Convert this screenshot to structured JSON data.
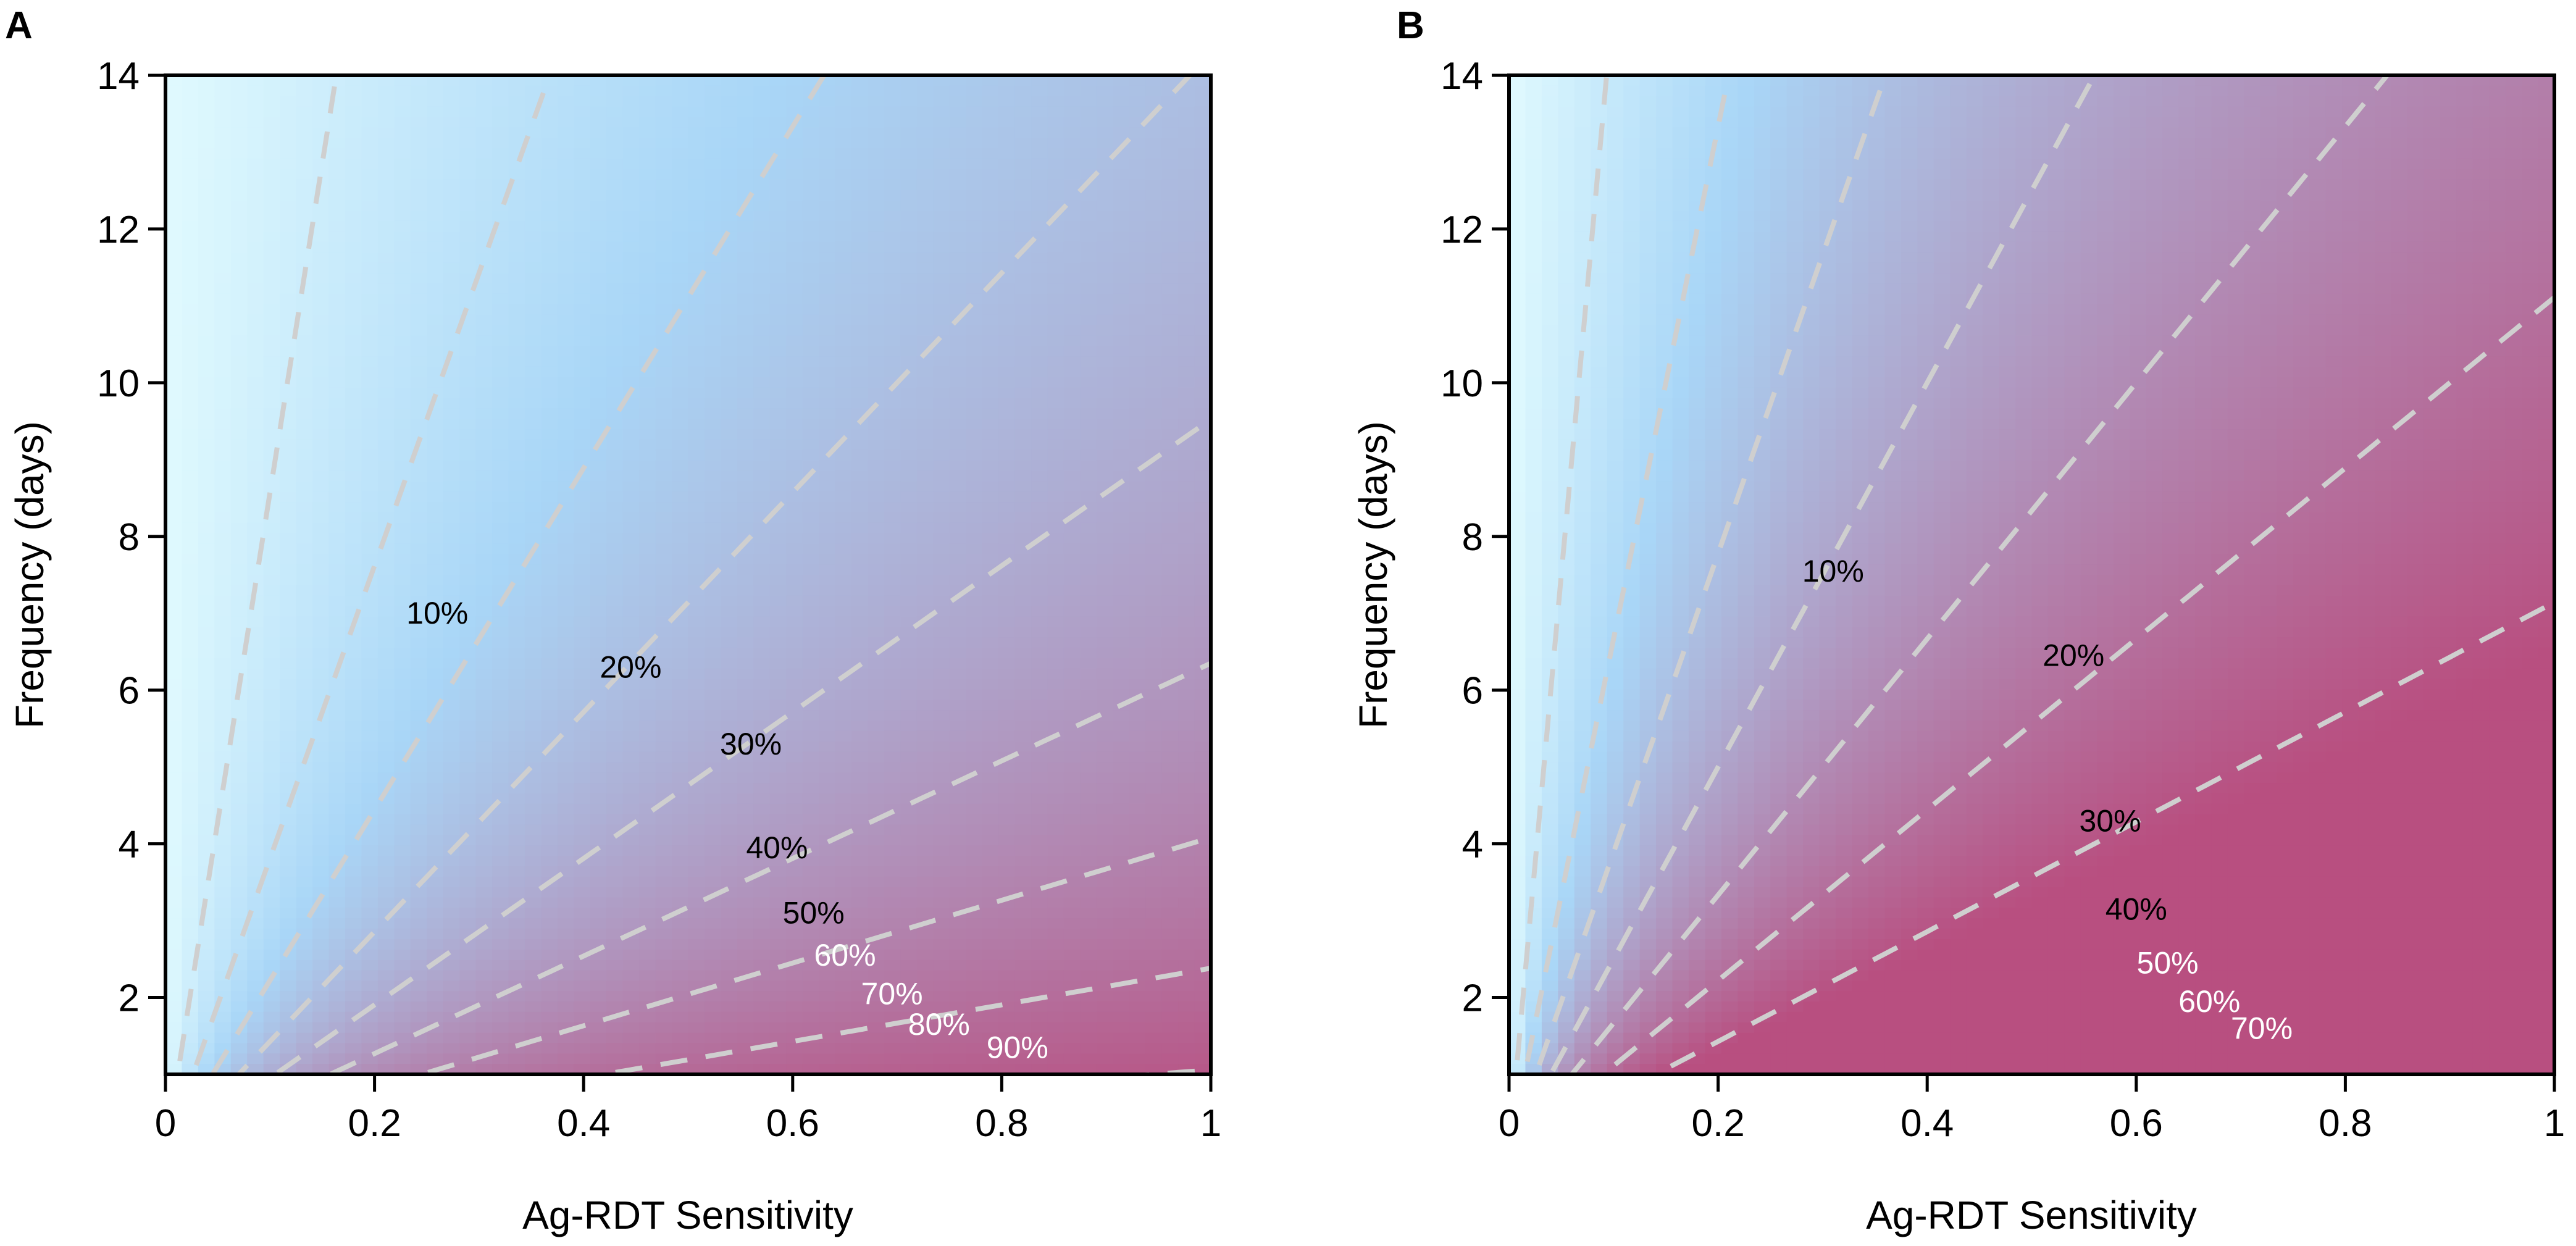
{
  "chart_data": [
    {
      "panel_label": "A",
      "type": "heatmap",
      "xlabel": "Ag-RDT Sensitivity",
      "ylabel": "Frequency (days)",
      "xlim": [
        0,
        1
      ],
      "ylim": [
        1,
        14
      ],
      "xticks": [
        "0",
        "0.2",
        "0.4",
        "0.6",
        "0.8",
        "1"
      ],
      "yticks": [
        "2",
        "4",
        "6",
        "8",
        "10",
        "12",
        "14"
      ],
      "xtick_values": [
        0,
        0.2,
        0.4,
        0.6,
        0.8,
        1
      ],
      "ytick_values": [
        2,
        4,
        6,
        8,
        10,
        12,
        14
      ],
      "contour_k": 0.105,
      "fill_max": 0.95,
      "colors": {
        "low": "#e0fafe",
        "mid": "#a9d6f7",
        "high": "#b84f80",
        "line": "#cfcfcf"
      },
      "contours": [
        {
          "label": "10%",
          "level": 0.1,
          "label_x": 0.26,
          "label_y": 7.0,
          "label_color": "#000000"
        },
        {
          "label": "20%",
          "level": 0.2,
          "label_x": 0.445,
          "label_y": 6.3,
          "label_color": "#000000"
        },
        {
          "label": "30%",
          "level": 0.3,
          "label_x": 0.56,
          "label_y": 5.3,
          "label_color": "#000000"
        },
        {
          "label": "40%",
          "level": 0.4,
          "label_x": 0.585,
          "label_y": 3.95,
          "label_color": "#000000"
        },
        {
          "label": "50%",
          "level": 0.5,
          "label_x": 0.62,
          "label_y": 3.1,
          "label_color": "#000000"
        },
        {
          "label": "60%",
          "level": 0.6,
          "label_x": 0.65,
          "label_y": 2.55,
          "label_color": "#ffffff"
        },
        {
          "label": "70%",
          "level": 0.7,
          "label_x": 0.695,
          "label_y": 2.05,
          "label_color": "#ffffff"
        },
        {
          "label": "80%",
          "level": 0.8,
          "label_x": 0.74,
          "label_y": 1.65,
          "label_color": "#ffffff"
        },
        {
          "label": "90%",
          "level": 0.9,
          "label_x": 0.815,
          "label_y": 1.35,
          "label_color": "#ffffff"
        }
      ]
    },
    {
      "panel_label": "B",
      "type": "heatmap",
      "xlabel": "Ag-RDT Sensitivity",
      "ylabel": "Frequency (days)",
      "xlim": [
        0,
        1
      ],
      "ylim": [
        1,
        14
      ],
      "xticks": [
        "0",
        "0.2",
        "0.4",
        "0.6",
        "0.8",
        "1"
      ],
      "yticks": [
        "2",
        "4",
        "6",
        "8",
        "10",
        "12",
        "14"
      ],
      "xtick_values": [
        0,
        0.2,
        0.4,
        0.6,
        0.8,
        1
      ],
      "ytick_values": [
        2,
        4,
        6,
        8,
        10,
        12,
        14
      ],
      "contour_k": 0.06,
      "fill_max": 0.72,
      "colors": {
        "low": "#e0fafe",
        "mid": "#a9d6f7",
        "high": "#b84f80",
        "line": "#cfcfcf"
      },
      "contours": [
        {
          "label": "10%",
          "level": 0.1,
          "label_x": 0.31,
          "label_y": 7.55,
          "label_color": "#000000"
        },
        {
          "label": "20%",
          "level": 0.2,
          "label_x": 0.54,
          "label_y": 6.45,
          "label_color": "#000000"
        },
        {
          "label": "30%",
          "level": 0.3,
          "label_x": 0.575,
          "label_y": 4.3,
          "label_color": "#000000"
        },
        {
          "label": "40%",
          "level": 0.4,
          "label_x": 0.6,
          "label_y": 3.15,
          "label_color": "#000000"
        },
        {
          "label": "50%",
          "level": 0.5,
          "label_x": 0.63,
          "label_y": 2.45,
          "label_color": "#ffffff"
        },
        {
          "label": "60%",
          "level": 0.6,
          "label_x": 0.67,
          "label_y": 1.95,
          "label_color": "#ffffff"
        },
        {
          "label": "70%",
          "level": 0.7,
          "label_x": 0.72,
          "label_y": 1.6,
          "label_color": "#ffffff"
        }
      ]
    }
  ]
}
